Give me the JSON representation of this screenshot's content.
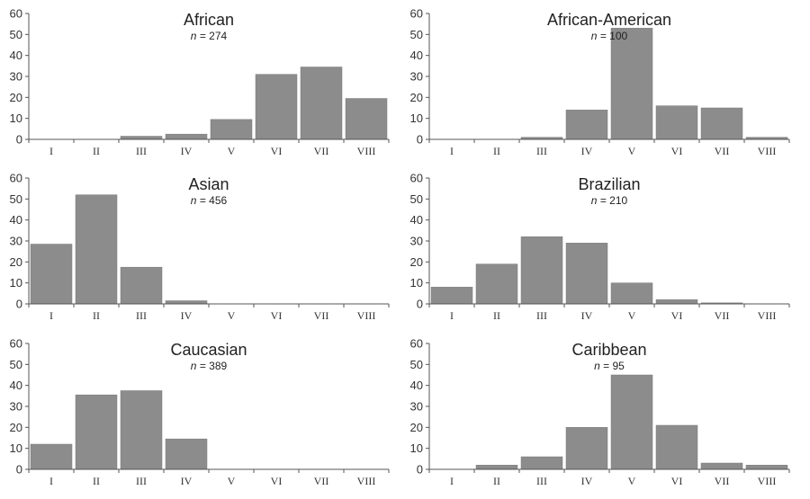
{
  "chart_data": [
    {
      "type": "bar",
      "title": "African",
      "subtitle": {
        "n_label": "n",
        "rest": " = 274"
      },
      "categories": [
        "I",
        "II",
        "III",
        "IV",
        "V",
        "VI",
        "VII",
        "VIII"
      ],
      "values": [
        0,
        0,
        1.5,
        2.5,
        9.5,
        31,
        34.5,
        19.5
      ],
      "yticks": [
        "0",
        "10",
        "20",
        "30",
        "40",
        "50",
        "60"
      ],
      "ylim": [
        0,
        60
      ],
      "color": "#8c8c8c"
    },
    {
      "type": "bar",
      "title": "African-American",
      "subtitle": {
        "n_label": "n",
        "rest": " = 100"
      },
      "categories": [
        "I",
        "II",
        "III",
        "IV",
        "V",
        "VI",
        "VII",
        "VIII"
      ],
      "values": [
        0,
        0,
        1,
        14,
        53,
        16,
        15,
        1
      ],
      "yticks": [
        "0",
        "10",
        "20",
        "30",
        "40",
        "50",
        "60"
      ],
      "ylim": [
        0,
        60
      ],
      "color": "#8c8c8c"
    },
    {
      "type": "bar",
      "title": "Asian",
      "subtitle": {
        "n_label": "n",
        "rest": " = 456"
      },
      "categories": [
        "I",
        "II",
        "III",
        "IV",
        "V",
        "VI",
        "VII",
        "VIII"
      ],
      "values": [
        28.5,
        52,
        17.5,
        1.5,
        0,
        0,
        0,
        0
      ],
      "yticks": [
        "0",
        "10",
        "20",
        "30",
        "40",
        "50",
        "60"
      ],
      "ylim": [
        0,
        60
      ],
      "color": "#8c8c8c"
    },
    {
      "type": "bar",
      "title": "Brazilian",
      "subtitle": {
        "n_label": "n",
        "rest": " = 210"
      },
      "categories": [
        "I",
        "II",
        "III",
        "IV",
        "V",
        "VI",
        "VII",
        "VIII"
      ],
      "values": [
        8,
        19,
        32,
        29,
        10,
        2,
        0.5,
        0
      ],
      "yticks": [
        "0",
        "10",
        "20",
        "30",
        "40",
        "50",
        "60"
      ],
      "ylim": [
        0,
        60
      ],
      "color": "#8c8c8c"
    },
    {
      "type": "bar",
      "title": "Caucasian",
      "subtitle": {
        "n_label": "n",
        "rest": " = 389"
      },
      "categories": [
        "I",
        "II",
        "III",
        "IV",
        "V",
        "VI",
        "VII",
        "VIII"
      ],
      "values": [
        12,
        35.5,
        37.5,
        14.5,
        0,
        0,
        0,
        0
      ],
      "yticks": [
        "0",
        "10",
        "20",
        "30",
        "40",
        "50",
        "60"
      ],
      "ylim": [
        0,
        60
      ],
      "color": "#8c8c8c"
    },
    {
      "type": "bar",
      "title": "Caribbean",
      "subtitle": {
        "n_label": "n",
        "rest": " = 95"
      },
      "categories": [
        "I",
        "II",
        "III",
        "IV",
        "V",
        "VI",
        "VII",
        "VIII"
      ],
      "values": [
        0,
        2,
        6,
        20,
        45,
        21,
        3,
        2
      ],
      "yticks": [
        "0",
        "10",
        "20",
        "30",
        "40",
        "50",
        "60"
      ],
      "ylim": [
        0,
        60
      ],
      "color": "#8c8c8c"
    }
  ]
}
